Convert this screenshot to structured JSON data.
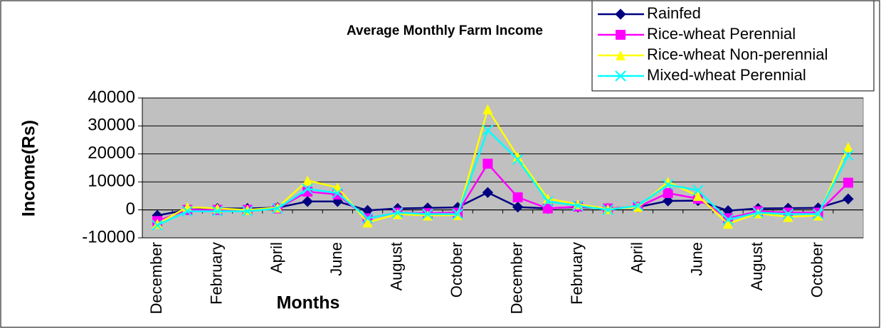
{
  "chart_data": {
    "type": "line",
    "title": "Average Monthly Farm Income",
    "x_label": "Months",
    "y_label": "Income(Rs)",
    "categories": [
      "December",
      null,
      "February",
      null,
      "April",
      null,
      "June",
      null,
      "August",
      null,
      "October",
      null,
      "December",
      null,
      "February",
      null,
      "April",
      null,
      "June",
      null,
      "August",
      null,
      "October",
      null
    ],
    "series": [
      {
        "name": "Rainfed",
        "color": "#000080",
        "marker": "diamond",
        "values": [
          -2000,
          0,
          500,
          500,
          800,
          3000,
          3000,
          -200,
          500,
          700,
          900,
          6200,
          1000,
          500,
          1000,
          500,
          1000,
          3200,
          3300,
          -300,
          500,
          600,
          700,
          3900
        ]
      },
      {
        "name": "Rice-wheat Perennial",
        "color": "#ff00ff",
        "marker": "square",
        "values": [
          -4000,
          0,
          0,
          0,
          500,
          6500,
          5500,
          -3000,
          -1000,
          -1200,
          -1000,
          16500,
          4500,
          500,
          1200,
          500,
          1000,
          6000,
          4000,
          -3000,
          -500,
          -1000,
          -1000,
          9700
        ]
      },
      {
        "name": "Rice-wheat Non-perennial",
        "color": "#ffff00",
        "marker": "triangle",
        "values": [
          -5000,
          1000,
          500,
          0,
          800,
          10500,
          8000,
          -4500,
          -1500,
          -2000,
          -1800,
          36000,
          19000,
          4000,
          2000,
          300,
          1000,
          10000,
          5000,
          -5000,
          -1200,
          -2500,
          -2000,
          22500
        ]
      },
      {
        "name": "Mixed-wheat Perennial",
        "color": "#00ffff",
        "marker": "x",
        "values": [
          -5500,
          -500,
          -500,
          -500,
          500,
          7500,
          6000,
          -3000,
          -1000,
          -1500,
          -1500,
          28500,
          18000,
          3000,
          1500,
          0,
          1500,
          9000,
          7000,
          -3500,
          -1000,
          -1500,
          -1500,
          19500
        ]
      }
    ],
    "ylim": [
      -10000,
      40000
    ],
    "yticks": [
      -10000,
      0,
      10000,
      20000,
      30000,
      40000
    ],
    "grid": true,
    "plot_background": "#c0c0c0",
    "legend": "top-right"
  }
}
